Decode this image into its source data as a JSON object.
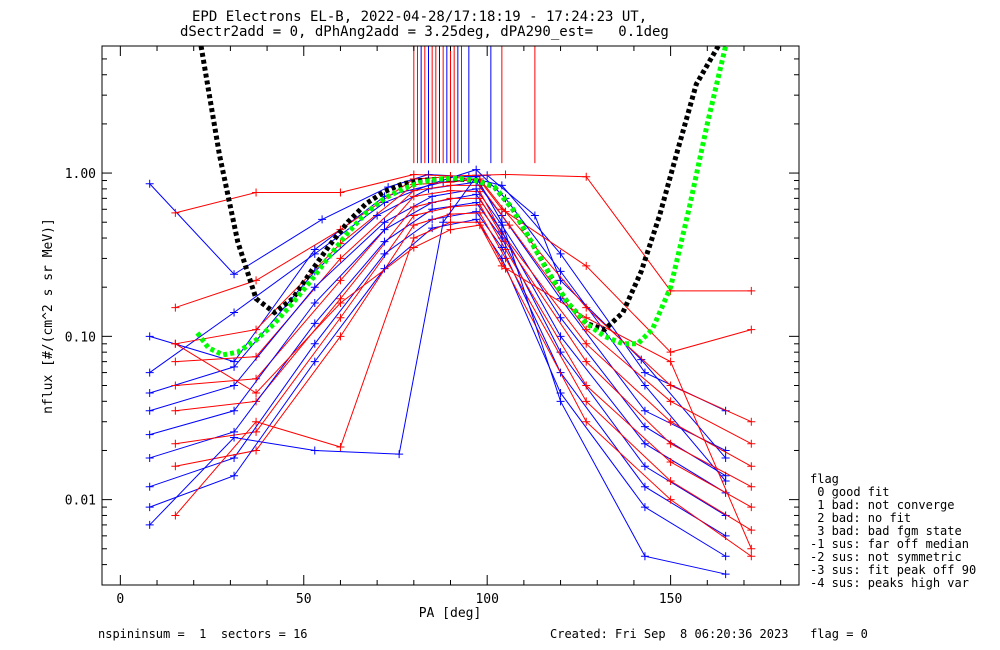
{
  "chart_data": {
    "type": "line",
    "title": "EPD Electrons EL-B, 2022-04-28/17:18:19 - 17:24:23 UT,",
    "subtitle": "dSectr2add = 0, dPhAng2add = 3.25deg, dPA290_est=   0.1deg",
    "xlabel": "PA [deg]",
    "ylabel": "nflux [#/(cm^2 s sr MeV)]",
    "xlim": [
      -5,
      185
    ],
    "ylim": [
      0.003,
      6.0
    ],
    "yscale": "log",
    "x_ticks": [
      0,
      50,
      100,
      150
    ],
    "y_ticks": [
      0.01,
      0.1,
      1.0
    ],
    "x_tick_labels": [
      "0",
      "50",
      "100",
      "150"
    ],
    "y_tick_labels": [
      "0.01",
      "0.10",
      "1.00"
    ],
    "series": [
      {
        "color": "#0000ff",
        "style": "marker-line",
        "x": [
          8,
          31,
          55,
          73,
          84,
          95,
          100,
          113,
          120,
          142,
          165
        ],
        "y": [
          0.86,
          0.24,
          0.52,
          0.82,
          0.98,
          0.95,
          0.97,
          0.55,
          0.22,
          0.072,
          0.018
        ]
      },
      {
        "color": "#ff0000",
        "style": "marker-line",
        "x": [
          15,
          37,
          60,
          80,
          90,
          97,
          105,
          127,
          150,
          172
        ],
        "y": [
          0.57,
          0.76,
          0.76,
          0.98,
          0.96,
          0.97,
          0.98,
          0.95,
          0.19,
          0.19
        ]
      },
      {
        "color": "#0000ff",
        "style": "marker-line",
        "x": [
          8,
          31,
          53,
          72,
          88,
          97,
          104,
          120,
          143,
          165
        ],
        "y": [
          0.1,
          0.07,
          0.34,
          0.72,
          0.88,
          0.92,
          0.84,
          0.32,
          0.06,
          0.035
        ]
      },
      {
        "color": "#ff0000",
        "style": "marker-line",
        "x": [
          15,
          37,
          60,
          80,
          90,
          98,
          104,
          127,
          150,
          172
        ],
        "y": [
          0.15,
          0.22,
          0.45,
          0.92,
          0.95,
          0.9,
          0.6,
          0.27,
          0.08,
          0.11
        ]
      },
      {
        "color": "#0000ff",
        "style": "marker-line",
        "x": [
          8,
          31,
          53,
          72,
          85,
          97,
          105,
          120,
          143,
          165
        ],
        "y": [
          0.06,
          0.14,
          0.32,
          0.66,
          0.86,
          1.05,
          0.7,
          0.25,
          0.05,
          0.013
        ]
      },
      {
        "color": "#ff0000",
        "style": "marker-line",
        "x": [
          15,
          37,
          60,
          80,
          90,
          98,
          105,
          127,
          150,
          172
        ],
        "y": [
          0.09,
          0.11,
          0.37,
          0.85,
          0.88,
          0.92,
          0.58,
          0.15,
          0.05,
          0.03
        ]
      },
      {
        "color": "#0000ff",
        "style": "marker-line",
        "x": [
          8,
          31,
          53,
          70,
          84,
          97,
          104,
          120,
          143,
          165
        ],
        "y": [
          0.045,
          0.065,
          0.25,
          0.55,
          0.8,
          0.88,
          0.55,
          0.17,
          0.035,
          0.02
        ]
      },
      {
        "color": "#ff0000",
        "style": "marker-line",
        "x": [
          15,
          37,
          60,
          80,
          90,
          98,
          106,
          127,
          150,
          172
        ],
        "y": [
          0.07,
          0.075,
          0.3,
          0.78,
          0.84,
          0.84,
          0.48,
          0.11,
          0.04,
          0.022
        ]
      },
      {
        "color": "#0000ff",
        "style": "marker-line",
        "x": [
          8,
          31,
          53,
          72,
          85,
          97,
          104,
          120,
          143,
          165
        ],
        "y": [
          0.035,
          0.05,
          0.2,
          0.5,
          0.72,
          0.8,
          0.48,
          0.13,
          0.028,
          0.014
        ]
      },
      {
        "color": "#ff0000",
        "style": "marker-line",
        "x": [
          15,
          37,
          60,
          80,
          90,
          98,
          104,
          127,
          150,
          172
        ],
        "y": [
          0.05,
          0.055,
          0.22,
          0.72,
          0.78,
          0.77,
          0.43,
          0.09,
          0.03,
          0.016
        ]
      },
      {
        "color": "#0000ff",
        "style": "marker-line",
        "x": [
          8,
          31,
          53,
          72,
          85,
          97,
          104,
          120,
          143,
          165
        ],
        "y": [
          0.025,
          0.035,
          0.16,
          0.45,
          0.66,
          0.74,
          0.44,
          0.1,
          0.022,
          0.011
        ]
      },
      {
        "color": "#ff0000",
        "style": "marker-line",
        "x": [
          15,
          37,
          60,
          80,
          90,
          98,
          105,
          127,
          150,
          172
        ],
        "y": [
          0.035,
          0.04,
          0.17,
          0.62,
          0.7,
          0.7,
          0.38,
          0.07,
          0.022,
          0.012
        ]
      },
      {
        "color": "#0000ff",
        "style": "marker-line",
        "x": [
          8,
          31,
          53,
          72,
          85,
          97,
          104,
          120,
          143,
          165
        ],
        "y": [
          0.018,
          0.026,
          0.12,
          0.38,
          0.6,
          0.66,
          0.4,
          0.08,
          0.016,
          0.008
        ]
      },
      {
        "color": "#ff0000",
        "style": "marker-line",
        "x": [
          15,
          37,
          60,
          80,
          90,
          98,
          105,
          127,
          150,
          172
        ],
        "y": [
          0.022,
          0.026,
          0.13,
          0.55,
          0.62,
          0.64,
          0.34,
          0.05,
          0.017,
          0.009
        ]
      },
      {
        "color": "#0000ff",
        "style": "marker-line",
        "x": [
          8,
          31,
          53,
          72,
          85,
          97,
          104,
          120,
          143,
          165
        ],
        "y": [
          0.012,
          0.018,
          0.09,
          0.32,
          0.52,
          0.58,
          0.35,
          0.06,
          0.012,
          0.006
        ]
      },
      {
        "color": "#ff0000",
        "style": "marker-line",
        "x": [
          15,
          37,
          60,
          80,
          90,
          98,
          105,
          127,
          150,
          172
        ],
        "y": [
          0.016,
          0.02,
          0.1,
          0.48,
          0.56,
          0.57,
          0.3,
          0.04,
          0.013,
          0.0065
        ]
      },
      {
        "color": "#0000ff",
        "style": "marker-line",
        "x": [
          8,
          31,
          53,
          72,
          85,
          97,
          104,
          120,
          143,
          165
        ],
        "y": [
          0.009,
          0.014,
          0.07,
          0.26,
          0.46,
          0.52,
          0.3,
          0.045,
          0.009,
          0.0045
        ]
      },
      {
        "color": "#ff0000",
        "style": "marker-line",
        "x": [
          15,
          37,
          60,
          80,
          90,
          98,
          105,
          127,
          150,
          172
        ],
        "y": [
          0.008,
          0.03,
          0.021,
          0.4,
          0.5,
          0.5,
          0.26,
          0.03,
          0.01,
          0.0045
        ]
      },
      {
        "color": "#0000ff",
        "style": "marker-line",
        "x": [
          8,
          31,
          53,
          76,
          88,
          97,
          104,
          120,
          143,
          165
        ],
        "y": [
          0.007,
          0.024,
          0.02,
          0.019,
          0.5,
          0.95,
          0.5,
          0.04,
          0.0045,
          0.0035
        ]
      },
      {
        "color": "#ff0000",
        "style": "marker-line",
        "x": [
          15,
          37,
          60,
          80,
          90,
          98,
          104,
          127,
          150,
          172
        ],
        "y": [
          0.09,
          0.045,
          0.16,
          0.35,
          0.45,
          0.48,
          0.27,
          0.13,
          0.07,
          0.005
        ]
      },
      {
        "color": "#000000",
        "style": "dashed-fit",
        "x": [
          22,
          27,
          32,
          37,
          42,
          47,
          52,
          57,
          62,
          67,
          72,
          77,
          82,
          87,
          92,
          97,
          102,
          107,
          112,
          117,
          122,
          127,
          132,
          137,
          142,
          147,
          152,
          157,
          163
        ],
        "y": [
          6.0,
          1.3,
          0.38,
          0.17,
          0.14,
          0.17,
          0.25,
          0.36,
          0.5,
          0.65,
          0.77,
          0.86,
          0.9,
          0.92,
          0.92,
          0.9,
          0.82,
          0.6,
          0.38,
          0.24,
          0.16,
          0.12,
          0.11,
          0.14,
          0.25,
          0.55,
          1.4,
          3.5,
          6.0
        ]
      },
      {
        "color": "#00ff00",
        "style": "dashed-fit",
        "x": [
          21,
          24,
          28,
          32,
          37,
          42,
          47,
          52,
          57,
          62,
          67,
          72,
          77,
          82,
          87,
          92,
          97,
          102,
          107,
          112,
          117,
          122,
          127,
          132,
          137,
          141,
          145,
          150,
          155,
          160,
          165
        ],
        "y": [
          0.105,
          0.085,
          0.077,
          0.08,
          0.095,
          0.12,
          0.16,
          0.22,
          0.31,
          0.43,
          0.57,
          0.7,
          0.8,
          0.88,
          0.92,
          0.93,
          0.9,
          0.82,
          0.6,
          0.38,
          0.24,
          0.16,
          0.12,
          0.1,
          0.09,
          0.09,
          0.11,
          0.2,
          0.6,
          2.0,
          6.0
        ]
      }
    ],
    "vertical_lines": [
      {
        "color": "#ff0000",
        "x": [
          80,
          81,
          83,
          85,
          86,
          88,
          90,
          91,
          93,
          104,
          113
        ],
        "from_y": 1.15,
        "to_y": 6.0
      },
      {
        "color": "#0000ff",
        "x": [
          82,
          84,
          87,
          89,
          92,
          95,
          101
        ],
        "from_y": 1.15,
        "to_y": 6.0
      }
    ],
    "legend": {
      "title": "flag",
      "entries": [
        " 0 good fit",
        " 1 bad: not converge",
        " 2 bad: no fit",
        " 3 bad: bad fgm state",
        "-1 sus: far off median",
        "-2 sus: not symmetric",
        "-3 sus: fit peak off 90",
        "-4 sus: peaks high var"
      ],
      "placement": "right-bottom"
    }
  },
  "footer": {
    "left": "nspininsum =  1  sectors = 16",
    "right": "Created: Fri Sep  8 06:20:36 2023   flag = 0"
  }
}
